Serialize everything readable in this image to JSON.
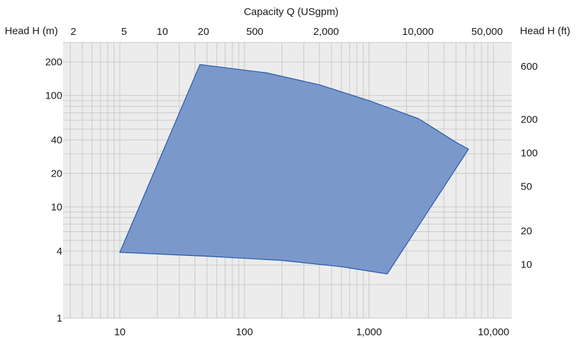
{
  "chart_data": {
    "type": "area",
    "scale": "log-log",
    "grid": true,
    "colors": {
      "plot_background": "#ececec",
      "grid": "#c9c9c9",
      "region_fill": "#7b98cb",
      "region_stroke": "#1f57a8"
    },
    "x_bottom": {
      "label": "",
      "range": [
        3.5,
        14000
      ],
      "ticks": [
        {
          "v": 10,
          "label": "10"
        },
        {
          "v": 100,
          "label": "100"
        },
        {
          "v": 1000,
          "label": "1,000"
        },
        {
          "v": 10000,
          "label": "10,000"
        }
      ]
    },
    "x_top": {
      "label": "Capacity Q (USgpm)",
      "tick_labels": [
        "2",
        "5",
        "10",
        "20",
        "500",
        "2,000",
        "10,000",
        "50,000"
      ]
    },
    "y_left": {
      "label": "Head H (m)",
      "range": [
        1,
        300
      ],
      "ticks": [
        {
          "v": 1,
          "label": "1"
        },
        {
          "v": 4,
          "label": "4"
        },
        {
          "v": 10,
          "label": "10"
        },
        {
          "v": 20,
          "label": "20"
        },
        {
          "v": 40,
          "label": "40"
        },
        {
          "v": 100,
          "label": "100"
        },
        {
          "v": 200,
          "label": "200"
        }
      ]
    },
    "y_right": {
      "label": "Head H (ft)",
      "ticks": [
        {
          "v": 3.048,
          "label": "10"
        },
        {
          "v": 6.096,
          "label": "20"
        },
        {
          "v": 15.24,
          "label": "50"
        },
        {
          "v": 30.48,
          "label": "100"
        },
        {
          "v": 60.96,
          "label": "200"
        },
        {
          "v": 182.88,
          "label": "600"
        }
      ]
    },
    "region": {
      "polygon": [
        {
          "x": 44,
          "y": 190
        },
        {
          "x": 150,
          "y": 160
        },
        {
          "x": 400,
          "y": 125
        },
        {
          "x": 1000,
          "y": 90
        },
        {
          "x": 2500,
          "y": 62
        },
        {
          "x": 5000,
          "y": 38
        },
        {
          "x": 6300,
          "y": 33
        },
        {
          "x": 1400,
          "y": 2.5
        },
        {
          "x": 600,
          "y": 2.9
        },
        {
          "x": 200,
          "y": 3.3
        },
        {
          "x": 50,
          "y": 3.6
        },
        {
          "x": 10,
          "y": 3.9
        }
      ]
    }
  }
}
